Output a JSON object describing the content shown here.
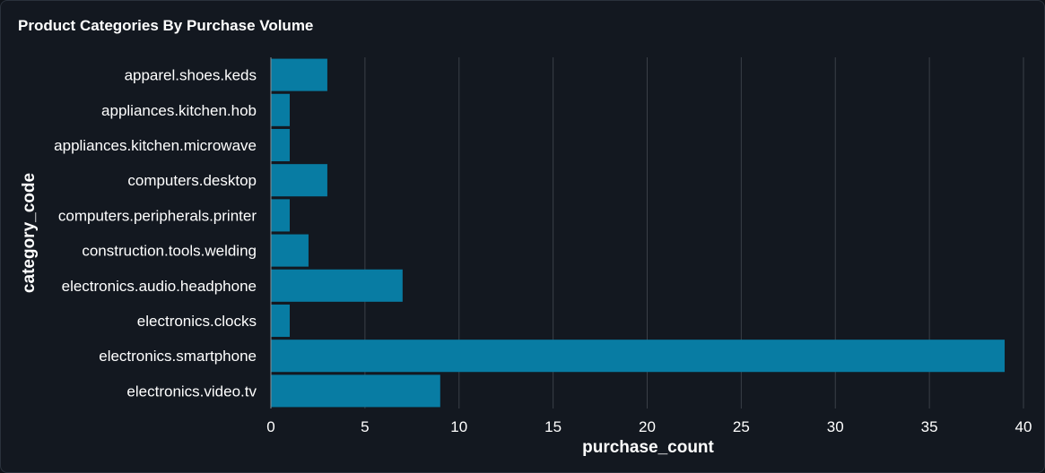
{
  "card": {
    "title": "Product Categories By Purchase Volume"
  },
  "chart_data": {
    "type": "bar",
    "orientation": "horizontal",
    "title": "Product Categories By Purchase Volume",
    "xlabel": "purchase_count",
    "ylabel": "category_code",
    "categories": [
      "apparel.shoes.keds",
      "appliances.kitchen.hob",
      "appliances.kitchen.microwave",
      "computers.desktop",
      "computers.peripherals.printer",
      "construction.tools.welding",
      "electronics.audio.headphone",
      "electronics.clocks",
      "electronics.smartphone",
      "electronics.video.tv"
    ],
    "values": [
      3,
      1,
      1,
      3,
      1,
      2,
      7,
      1,
      39,
      9
    ],
    "xlim": [
      0,
      40
    ],
    "xticks": [
      0,
      5,
      10,
      15,
      20,
      25,
      30,
      35,
      40
    ],
    "grid": true,
    "bar_color": "#087ca3",
    "grid_color": "#3a3f47",
    "text_color": "#ffffff"
  }
}
